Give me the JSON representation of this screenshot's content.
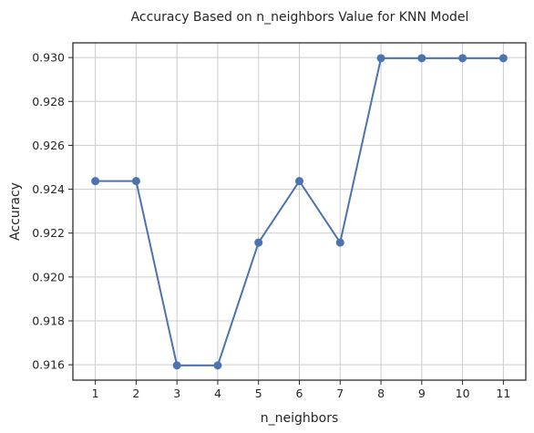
{
  "chart_data": {
    "type": "line",
    "title": "Accuracy Based on n_neighbors Value for KNN Model",
    "xlabel": "n_neighbors",
    "ylabel": "Accuracy",
    "x": [
      1,
      2,
      3,
      4,
      5,
      6,
      7,
      8,
      9,
      10,
      11
    ],
    "series": [
      {
        "values": [
          0.92437,
          0.92437,
          0.91597,
          0.91597,
          0.92157,
          0.92437,
          0.92157,
          0.92997,
          0.92997,
          0.92997,
          0.92997
        ]
      }
    ],
    "xlim": [
      0.45,
      11.55
    ],
    "ylim": [
      0.9153,
      0.93067
    ],
    "xticks": [
      1,
      2,
      3,
      4,
      5,
      6,
      7,
      8,
      9,
      10,
      11
    ],
    "yticks": [
      "0.916",
      "0.918",
      "0.920",
      "0.922",
      "0.924",
      "0.926",
      "0.928",
      "0.930"
    ],
    "grid": true,
    "line_color": "#4c72b0",
    "marker": "circle"
  }
}
